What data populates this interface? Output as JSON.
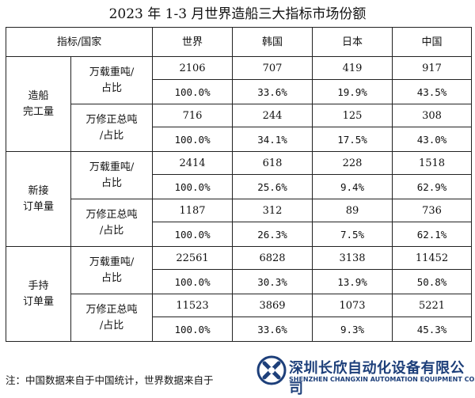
{
  "title": "2023 年 1-3 月世界造船三大指标市场份额",
  "header": [
    "指标/国家",
    "世界",
    "韩国",
    "日本",
    "中国"
  ],
  "groups": [
    {
      "name_lines": [
        "造船",
        "完工量"
      ],
      "metrics": [
        {
          "name_lines": [
            "万载重吨/",
            "占比"
          ],
          "values": [
            "2106",
            "707",
            "419",
            "917"
          ],
          "shares": [
            "100.0%",
            "33.6%",
            "19.9%",
            "43.5%"
          ]
        },
        {
          "name_lines": [
            "万修正总吨",
            "/占比"
          ],
          "values": [
            "716",
            "244",
            "125",
            "308"
          ],
          "shares": [
            "100.0%",
            "34.1%",
            "17.5%",
            "43.0%"
          ]
        }
      ]
    },
    {
      "name_lines": [
        "新接",
        "订单量"
      ],
      "metrics": [
        {
          "name_lines": [
            "万载重吨/",
            "占比"
          ],
          "values": [
            "2414",
            "618",
            "228",
            "1518"
          ],
          "shares": [
            "100.0%",
            "25.6%",
            "9.4%",
            "62.9%"
          ]
        },
        {
          "name_lines": [
            "万修正总吨",
            "/占比"
          ],
          "values": [
            "1187",
            "312",
            "89",
            "736"
          ],
          "shares": [
            "100.0%",
            "26.3%",
            "7.5%",
            "62.1%"
          ]
        }
      ]
    },
    {
      "name_lines": [
        "手持",
        "订单量"
      ],
      "metrics": [
        {
          "name_lines": [
            "万载重吨/",
            "占比"
          ],
          "values": [
            "22561",
            "6828",
            "3138",
            "11452"
          ],
          "shares": [
            "100.0%",
            "30.3%",
            "13.9%",
            "50.8%"
          ]
        },
        {
          "name_lines": [
            "万修正总吨",
            "/占比"
          ],
          "values": [
            "11523",
            "3869",
            "1073",
            "5221"
          ],
          "shares": [
            "100.0%",
            "33.6%",
            "9.3%",
            "45.3%"
          ]
        }
      ]
    }
  ],
  "note": "注：中国数据来自于中国统计，世界数据来自于",
  "watermark": {
    "cn": "深圳长欣自动化设备有限公司",
    "en": "SHENZHEN CHANGXIN AUTOMATION EQUIPMENT CO., LTD",
    "color": "#1d3f7a"
  }
}
